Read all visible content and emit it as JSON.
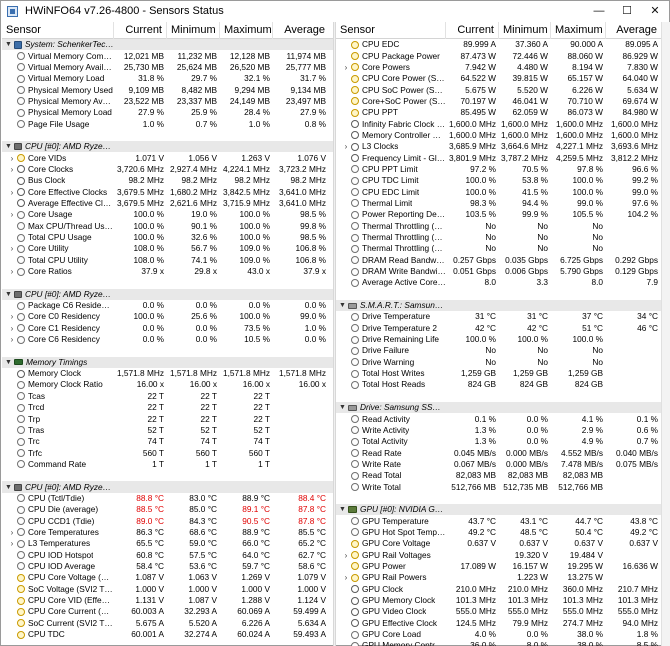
{
  "window": {
    "title": "HWiNFO64 v7.26-4800 - Sensors Status",
    "min": "—",
    "max": "☐",
    "close": "✕"
  },
  "columns": {
    "sensor": "Sensor",
    "current": "Current",
    "minimum": "Minimum",
    "maximum": "Maximum",
    "average": "Average"
  },
  "left_rows": [
    {
      "t": "g",
      "label": "System: SchenkerTechno...",
      "icon": "pc"
    },
    {
      "t": "r",
      "label": "Virtual Memory Committed",
      "icon": "gen",
      "cur": "12,021 MB",
      "min": "11,232 MB",
      "max": "12,128 MB",
      "avg": "11,974 MB"
    },
    {
      "t": "r",
      "label": "Virtual Memory Available",
      "icon": "gen",
      "cur": "25,730 MB",
      "min": "25,624 MB",
      "max": "26,520 MB",
      "avg": "25,777 MB"
    },
    {
      "t": "r",
      "label": "Virtual Memory Load",
      "icon": "gen",
      "cur": "31.8 %",
      "min": "29.7 %",
      "max": "32.1 %",
      "avg": "31.7 %"
    },
    {
      "t": "r",
      "label": "Physical Memory Used",
      "icon": "gen",
      "cur": "9,109 MB",
      "min": "8,482 MB",
      "max": "9,294 MB",
      "avg": "9,134 MB"
    },
    {
      "t": "r",
      "label": "Physical Memory Available",
      "icon": "gen",
      "cur": "23,522 MB",
      "min": "23,337 MB",
      "max": "24,149 MB",
      "avg": "23,497 MB"
    },
    {
      "t": "r",
      "label": "Physical Memory Load",
      "icon": "gen",
      "cur": "27.9 %",
      "min": "25.9 %",
      "max": "28.4 %",
      "avg": "27.9 %"
    },
    {
      "t": "r",
      "label": "Page File Usage",
      "icon": "gen",
      "cur": "1.0 %",
      "min": "0.7 %",
      "max": "1.0 %",
      "avg": "0.8 %"
    },
    {
      "t": "s"
    },
    {
      "t": "g",
      "label": "CPU [#0]: AMD Ryzen 7 ...",
      "icon": "chip"
    },
    {
      "t": "r",
      "label": "Core VIDs",
      "icon": "bolt",
      "exp": true,
      "cur": "1.071 V",
      "min": "1.056 V",
      "max": "1.263 V",
      "avg": "1.076 V"
    },
    {
      "t": "r",
      "label": "Core Clocks",
      "icon": "clock",
      "exp": true,
      "cur": "3,720.6 MHz",
      "min": "2,927.4 MHz",
      "max": "4,224.1 MHz",
      "avg": "3,723.2 MHz"
    },
    {
      "t": "r",
      "label": "Bus Clock",
      "icon": "clock",
      "cur": "98.2 MHz",
      "min": "98.2 MHz",
      "max": "98.2 MHz",
      "avg": "98.2 MHz"
    },
    {
      "t": "r",
      "label": "Core Effective Clocks",
      "icon": "clock",
      "exp": true,
      "cur": "3,679.5 MHz",
      "min": "1,680.2 MHz",
      "max": "3,842.5 MHz",
      "avg": "3,641.0 MHz"
    },
    {
      "t": "r",
      "label": "Average Effective Clock",
      "icon": "clock",
      "cur": "3,679.5 MHz",
      "min": "2,621.6 MHz",
      "max": "3,715.9 MHz",
      "avg": "3,641.0 MHz"
    },
    {
      "t": "r",
      "label": "Core Usage",
      "icon": "gen",
      "exp": true,
      "cur": "100.0 %",
      "min": "19.0 %",
      "max": "100.0 %",
      "avg": "98.5 %"
    },
    {
      "t": "r",
      "label": "Max CPU/Thread Usage",
      "icon": "gen",
      "cur": "100.0 %",
      "min": "90.1 %",
      "max": "100.0 %",
      "avg": "99.8 %"
    },
    {
      "t": "r",
      "label": "Total CPU Usage",
      "icon": "gen",
      "cur": "100.0 %",
      "min": "32.6 %",
      "max": "100.0 %",
      "avg": "98.5 %"
    },
    {
      "t": "r",
      "label": "Core Utility",
      "icon": "gen",
      "exp": true,
      "cur": "108.0 %",
      "min": "56.7 %",
      "max": "109.0 %",
      "avg": "106.8 %"
    },
    {
      "t": "r",
      "label": "Total CPU Utility",
      "icon": "gen",
      "cur": "108.0 %",
      "min": "74.1 %",
      "max": "109.0 %",
      "avg": "106.8 %"
    },
    {
      "t": "r",
      "label": "Core Ratios",
      "icon": "gen",
      "exp": true,
      "cur": "37.9 x",
      "min": "29.8 x",
      "max": "43.0 x",
      "avg": "37.9 x"
    },
    {
      "t": "s"
    },
    {
      "t": "g",
      "label": "CPU [#0]: AMD Ryzen 7 ...",
      "icon": "chip"
    },
    {
      "t": "r",
      "label": "Package C6 Residency",
      "icon": "gen",
      "cur": "0.0 %",
      "min": "0.0 %",
      "max": "0.0 %",
      "avg": "0.0 %"
    },
    {
      "t": "r",
      "label": "Core C0 Residency",
      "icon": "gen",
      "exp": true,
      "cur": "100.0 %",
      "min": "25.6 %",
      "max": "100.0 %",
      "avg": "99.0 %"
    },
    {
      "t": "r",
      "label": "Core C1 Residency",
      "icon": "gen",
      "exp": true,
      "cur": "0.0 %",
      "min": "0.0 %",
      "max": "73.5 %",
      "avg": "1.0 %"
    },
    {
      "t": "r",
      "label": "Core C6 Residency",
      "icon": "gen",
      "exp": true,
      "cur": "0.0 %",
      "min": "0.0 %",
      "max": "10.5 %",
      "avg": "0.0 %"
    },
    {
      "t": "s"
    },
    {
      "t": "g",
      "label": "Memory Timings",
      "icon": "ram"
    },
    {
      "t": "r",
      "label": "Memory Clock",
      "icon": "clock",
      "cur": "1,571.8 MHz",
      "min": "1,571.8 MHz",
      "max": "1,571.8 MHz",
      "avg": "1,571.8 MHz"
    },
    {
      "t": "r",
      "label": "Memory Clock Ratio",
      "icon": "gen",
      "cur": "16.00 x",
      "min": "16.00 x",
      "max": "16.00 x",
      "avg": "16.00 x"
    },
    {
      "t": "r",
      "label": "Tcas",
      "icon": "gen",
      "cur": "22 T",
      "min": "22 T",
      "max": "22 T",
      "avg": ""
    },
    {
      "t": "r",
      "label": "Trcd",
      "icon": "gen",
      "cur": "22 T",
      "min": "22 T",
      "max": "22 T",
      "avg": ""
    },
    {
      "t": "r",
      "label": "Trp",
      "icon": "gen",
      "cur": "22 T",
      "min": "22 T",
      "max": "22 T",
      "avg": ""
    },
    {
      "t": "r",
      "label": "Tras",
      "icon": "gen",
      "cur": "52 T",
      "min": "52 T",
      "max": "52 T",
      "avg": ""
    },
    {
      "t": "r",
      "label": "Trc",
      "icon": "gen",
      "cur": "74 T",
      "min": "74 T",
      "max": "74 T",
      "avg": ""
    },
    {
      "t": "r",
      "label": "Trfc",
      "icon": "gen",
      "cur": "560 T",
      "min": "560 T",
      "max": "560 T",
      "avg": ""
    },
    {
      "t": "r",
      "label": "Command Rate",
      "icon": "gen",
      "cur": "1 T",
      "min": "1 T",
      "max": "1 T",
      "avg": ""
    },
    {
      "t": "s"
    },
    {
      "t": "g",
      "label": "CPU [#0]: AMD Ryzen 7 ...",
      "icon": "chip"
    },
    {
      "t": "r",
      "label": "CPU (Tctl/Tdie)",
      "icon": "gen",
      "cur": "88.8 °C",
      "min": "83.0 °C",
      "max": "88.9 °C",
      "avg": "88.4 °C",
      "red": [
        "cur",
        "avg"
      ]
    },
    {
      "t": "r",
      "label": "CPU Die (average)",
      "icon": "gen",
      "cur": "88.5 °C",
      "min": "85.0 °C",
      "max": "89.1 °C",
      "avg": "87.8 °C",
      "red": [
        "cur",
        "max",
        "avg"
      ]
    },
    {
      "t": "r",
      "label": "CPU CCD1 (Tdie)",
      "icon": "gen",
      "cur": "89.0 °C",
      "min": "84.3 °C",
      "max": "90.5 °C",
      "avg": "87.8 °C",
      "red": [
        "cur",
        "max",
        "avg"
      ]
    },
    {
      "t": "r",
      "label": "Core Temperatures",
      "icon": "gen",
      "exp": true,
      "cur": "86.3 °C",
      "min": "68.6 °C",
      "max": "88.9 °C",
      "avg": "85.5 °C"
    },
    {
      "t": "r",
      "label": "L3 Temperatures",
      "icon": "gen",
      "exp": true,
      "cur": "65.5 °C",
      "min": "59.0 °C",
      "max": "66.0 °C",
      "avg": "65.2 °C"
    },
    {
      "t": "r",
      "label": "CPU IOD Hotspot",
      "icon": "gen",
      "cur": "60.8 °C",
      "min": "57.5 °C",
      "max": "64.0 °C",
      "avg": "62.7 °C"
    },
    {
      "t": "r",
      "label": "CPU IOD Average",
      "icon": "gen",
      "cur": "58.4 °C",
      "min": "53.6 °C",
      "max": "59.7 °C",
      "avg": "58.6 °C"
    },
    {
      "t": "r",
      "label": "CPU Core Voltage (SVI2 ...",
      "icon": "bolt",
      "cur": "1.087 V",
      "min": "1.063 V",
      "max": "1.269 V",
      "avg": "1.079 V"
    },
    {
      "t": "r",
      "label": "SoC Voltage (SVI2 TFN)",
      "icon": "bolt",
      "cur": "1.000 V",
      "min": "1.000 V",
      "max": "1.000 V",
      "avg": "1.000 V"
    },
    {
      "t": "r",
      "label": "CPU Core VID (Effective)",
      "icon": "bolt",
      "cur": "1.131 V",
      "min": "1.087 V",
      "max": "1.288 V",
      "avg": "1.124 V"
    },
    {
      "t": "r",
      "label": "CPU Core Current (SVI2 ...",
      "icon": "bolt",
      "cur": "60.003 A",
      "min": "32.293 A",
      "max": "60.069 A",
      "avg": "59.499 A"
    },
    {
      "t": "r",
      "label": "SoC Current (SVI2 TFN)",
      "icon": "bolt",
      "cur": "5.675 A",
      "min": "5.520 A",
      "max": "6.226 A",
      "avg": "5.634 A"
    },
    {
      "t": "r",
      "label": "CPU TDC",
      "icon": "bolt",
      "cur": "60.001 A",
      "min": "32.274 A",
      "max": "60.024 A",
      "avg": "59.493 A"
    }
  ],
  "right_rows": [
    {
      "t": "r",
      "label": "CPU EDC",
      "icon": "bolt",
      "cur": "89.999 A",
      "min": "37.360 A",
      "max": "90.000 A",
      "avg": "89.095 A"
    },
    {
      "t": "r",
      "label": "CPU Package Power",
      "icon": "bolt",
      "cur": "87.473 W",
      "min": "72.446 W",
      "max": "88.060 W",
      "avg": "86.929 W"
    },
    {
      "t": "r",
      "label": "Core Powers",
      "icon": "bolt",
      "exp": true,
      "cur": "7.942 W",
      "min": "4.480 W",
      "max": "8.194 W",
      "avg": "7.830 W"
    },
    {
      "t": "r",
      "label": "CPU Core Power (SVI2 TFN)",
      "icon": "bolt",
      "cur": "64.522 W",
      "min": "39.815 W",
      "max": "65.157 W",
      "avg": "64.040 W"
    },
    {
      "t": "r",
      "label": "CPU SoC Power (SVI2 TFN)",
      "icon": "bolt",
      "cur": "5.675 W",
      "min": "5.520 W",
      "max": "6.226 W",
      "avg": "5.634 W"
    },
    {
      "t": "r",
      "label": "Core+SoC Power (SVI2 T...",
      "icon": "bolt",
      "cur": "70.197 W",
      "min": "46.041 W",
      "max": "70.710 W",
      "avg": "69.674 W"
    },
    {
      "t": "r",
      "label": "CPU PPT",
      "icon": "bolt",
      "cur": "85.495 W",
      "min": "62.059 W",
      "max": "86.073 W",
      "avg": "84.980 W"
    },
    {
      "t": "r",
      "label": "Infinity Fabric Clock (FCLK)",
      "icon": "clock",
      "cur": "1,600.0 MHz",
      "min": "1,600.0 MHz",
      "max": "1,600.0 MHz",
      "avg": "1,600.0 MHz"
    },
    {
      "t": "r",
      "label": "Memory Controller Clock ...",
      "icon": "clock",
      "cur": "1,600.0 MHz",
      "min": "1,600.0 MHz",
      "max": "1,600.0 MHz",
      "avg": "1,600.0 MHz"
    },
    {
      "t": "r",
      "label": "L3 Clocks",
      "icon": "clock",
      "exp": true,
      "cur": "3,685.9 MHz",
      "min": "3,664.6 MHz",
      "max": "4,227.1 MHz",
      "avg": "3,693.6 MHz"
    },
    {
      "t": "r",
      "label": "Frequency Limit - Global",
      "icon": "clock",
      "cur": "3,801.9 MHz",
      "min": "3,787.2 MHz",
      "max": "4,259.5 MHz",
      "avg": "3,812.2 MHz"
    },
    {
      "t": "r",
      "label": "CPU PPT Limit",
      "icon": "gen",
      "cur": "97.2 %",
      "min": "70.5 %",
      "max": "97.8 %",
      "avg": "96.6 %"
    },
    {
      "t": "r",
      "label": "CPU TDC Limit",
      "icon": "gen",
      "cur": "100.0 %",
      "min": "53.8 %",
      "max": "100.0 %",
      "avg": "99.2 %"
    },
    {
      "t": "r",
      "label": "CPU EDC Limit",
      "icon": "gen",
      "cur": "100.0 %",
      "min": "41.5 %",
      "max": "100.0 %",
      "avg": "99.0 %"
    },
    {
      "t": "r",
      "label": "Thermal Limit",
      "icon": "gen",
      "cur": "98.3 %",
      "min": "94.4 %",
      "max": "99.0 %",
      "avg": "97.6 %"
    },
    {
      "t": "r",
      "label": "Power Reporting Deviatio...",
      "icon": "gen",
      "cur": "103.5 %",
      "min": "99.9 %",
      "max": "105.5 %",
      "avg": "104.2 %"
    },
    {
      "t": "r",
      "label": "Thermal Throttling (HTC)",
      "icon": "gen",
      "cur": "No",
      "min": "No",
      "max": "No",
      "avg": ""
    },
    {
      "t": "r",
      "label": "Thermal Throttling (PROC...",
      "icon": "gen",
      "cur": "No",
      "min": "No",
      "max": "No",
      "avg": ""
    },
    {
      "t": "r",
      "label": "Thermal Throttling (PROC...",
      "icon": "gen",
      "cur": "No",
      "min": "No",
      "max": "No",
      "avg": ""
    },
    {
      "t": "r",
      "label": "DRAM Read Bandwidth",
      "icon": "gen",
      "cur": "0.257 Gbps",
      "min": "0.035 Gbps",
      "max": "6.725 Gbps",
      "avg": "0.292 Gbps"
    },
    {
      "t": "r",
      "label": "DRAM Write Bandwidth",
      "icon": "gen",
      "cur": "0.051 Gbps",
      "min": "0.006 Gbps",
      "max": "5.790 Gbps",
      "avg": "0.129 Gbps"
    },
    {
      "t": "r",
      "label": "Average Active Core Count",
      "icon": "gen",
      "cur": "8.0",
      "min": "3.3",
      "max": "8.0",
      "avg": "7.9"
    },
    {
      "t": "s"
    },
    {
      "t": "g",
      "label": "S.M.A.R.T.: Samsung SS...",
      "icon": "disk"
    },
    {
      "t": "r",
      "label": "Drive Temperature",
      "icon": "gen",
      "cur": "31 °C",
      "min": "31 °C",
      "max": "37 °C",
      "avg": "34 °C"
    },
    {
      "t": "r",
      "label": "Drive Temperature 2",
      "icon": "gen",
      "cur": "42 °C",
      "min": "42 °C",
      "max": "51 °C",
      "avg": "46 °C"
    },
    {
      "t": "r",
      "label": "Drive Remaining Life",
      "icon": "gen",
      "cur": "100.0 %",
      "min": "100.0 %",
      "max": "100.0 %",
      "avg": ""
    },
    {
      "t": "r",
      "label": "Drive Failure",
      "icon": "gen",
      "cur": "No",
      "min": "No",
      "max": "No",
      "avg": ""
    },
    {
      "t": "r",
      "label": "Drive Warning",
      "icon": "gen",
      "cur": "No",
      "min": "No",
      "max": "No",
      "avg": ""
    },
    {
      "t": "r",
      "label": "Total Host Writes",
      "icon": "gen",
      "cur": "1,259 GB",
      "min": "1,259 GB",
      "max": "1,259 GB",
      "avg": ""
    },
    {
      "t": "r",
      "label": "Total Host Reads",
      "icon": "gen",
      "cur": "824 GB",
      "min": "824 GB",
      "max": "824 GB",
      "avg": ""
    },
    {
      "t": "s"
    },
    {
      "t": "g",
      "label": "Drive: Samsung SSD 980 ...",
      "icon": "disk"
    },
    {
      "t": "r",
      "label": "Read Activity",
      "icon": "gen",
      "cur": "0.1 %",
      "min": "0.0 %",
      "max": "4.1 %",
      "avg": "0.1 %"
    },
    {
      "t": "r",
      "label": "Write Activity",
      "icon": "gen",
      "cur": "1.3 %",
      "min": "0.0 %",
      "max": "2.9 %",
      "avg": "0.6 %"
    },
    {
      "t": "r",
      "label": "Total Activity",
      "icon": "gen",
      "cur": "1.3 %",
      "min": "0.0 %",
      "max": "4.9 %",
      "avg": "0.7 %"
    },
    {
      "t": "r",
      "label": "Read Rate",
      "icon": "gen",
      "cur": "0.045 MB/s",
      "min": "0.000 MB/s",
      "max": "4.552 MB/s",
      "avg": "0.040 MB/s"
    },
    {
      "t": "r",
      "label": "Write Rate",
      "icon": "gen",
      "cur": "0.067 MB/s",
      "min": "0.000 MB/s",
      "max": "7.478 MB/s",
      "avg": "0.075 MB/s"
    },
    {
      "t": "r",
      "label": "Read Total",
      "icon": "gen",
      "cur": "82,083 MB",
      "min": "82,083 MB",
      "max": "82,083 MB",
      "avg": ""
    },
    {
      "t": "r",
      "label": "Write Total",
      "icon": "gen",
      "cur": "512,766 MB",
      "min": "512,735 MB",
      "max": "512,766 MB",
      "avg": ""
    },
    {
      "t": "s"
    },
    {
      "t": "g",
      "label": "GPU [#0]: NVIDIA GeFor...",
      "icon": "gpu"
    },
    {
      "t": "r",
      "label": "GPU Temperature",
      "icon": "gen",
      "cur": "43.7 °C",
      "min": "43.1 °C",
      "max": "44.7 °C",
      "avg": "43.8 °C"
    },
    {
      "t": "r",
      "label": "GPU Hot Spot Temperature",
      "icon": "gen",
      "cur": "49.2 °C",
      "min": "48.5 °C",
      "max": "50.4 °C",
      "avg": "49.2 °C"
    },
    {
      "t": "r",
      "label": "GPU Core Voltage",
      "icon": "bolt",
      "cur": "0.637 V",
      "min": "0.637 V",
      "max": "0.637 V",
      "avg": "0.637 V"
    },
    {
      "t": "r",
      "label": "GPU Rail Voltages",
      "icon": "bolt",
      "exp": true,
      "cur": "",
      "min": "19.320 V",
      "max": "19.484 V",
      "avg": ""
    },
    {
      "t": "r",
      "label": "GPU Power",
      "icon": "bolt",
      "cur": "17.089 W",
      "min": "16.157 W",
      "max": "19.295 W",
      "avg": "16.636 W"
    },
    {
      "t": "r",
      "label": "GPU Rail Powers",
      "icon": "bolt",
      "exp": true,
      "cur": "",
      "min": "1.223 W",
      "max": "13.275 W",
      "avg": ""
    },
    {
      "t": "r",
      "label": "GPU Clock",
      "icon": "clock",
      "cur": "210.0 MHz",
      "min": "210.0 MHz",
      "max": "360.0 MHz",
      "avg": "210.7 MHz"
    },
    {
      "t": "r",
      "label": "GPU Memory Clock",
      "icon": "clock",
      "cur": "101.3 MHz",
      "min": "101.3 MHz",
      "max": "101.3 MHz",
      "avg": "101.3 MHz"
    },
    {
      "t": "r",
      "label": "GPU Video Clock",
      "icon": "clock",
      "cur": "555.0 MHz",
      "min": "555.0 MHz",
      "max": "555.0 MHz",
      "avg": "555.0 MHz"
    },
    {
      "t": "r",
      "label": "GPU Effective Clock",
      "icon": "clock",
      "cur": "124.5 MHz",
      "min": "79.9 MHz",
      "max": "274.7 MHz",
      "avg": "94.0 MHz"
    },
    {
      "t": "r",
      "label": "GPU Core Load",
      "icon": "gen",
      "cur": "4.0 %",
      "min": "0.0 %",
      "max": "38.0 %",
      "avg": "1.8 %"
    },
    {
      "t": "r",
      "label": "GPU Memory Controller L...",
      "icon": "gen",
      "cur": "36.0 %",
      "min": "8.0 %",
      "max": "38.0 %",
      "avg": "8.5 %"
    }
  ]
}
